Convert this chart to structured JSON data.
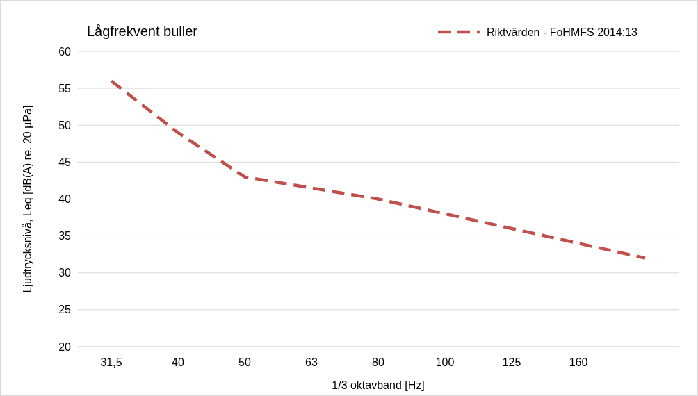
{
  "chart_data": {
    "type": "line",
    "title": "Lågfrekvent buller",
    "xlabel": "1/3 oktavband [Hz]",
    "ylabel": "Ljudtrycksnivå, Leq [dB(A) re. 20 µPa]",
    "categories": [
      "31,5",
      "40",
      "50",
      "63",
      "80",
      "100",
      "125",
      "160",
      null
    ],
    "series": [
      {
        "name": "Riktvärden - FoHMFS 2014:13",
        "color": "#c0504d",
        "values": [
          56,
          49,
          43,
          41.5,
          40,
          38,
          36,
          34,
          32
        ]
      }
    ],
    "ylim": [
      20,
      60
    ],
    "yticks": [
      20,
      25,
      30,
      35,
      40,
      45,
      50,
      55,
      60
    ],
    "grid": "y",
    "legend": "top right",
    "line_style": "dashed",
    "marker": "none"
  }
}
